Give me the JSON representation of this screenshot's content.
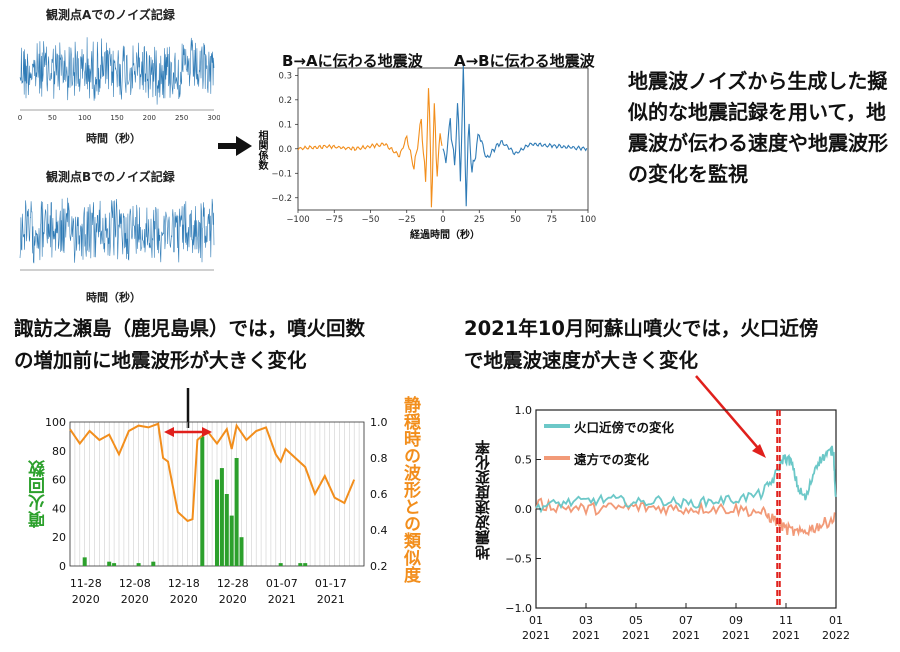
{
  "top_left": {
    "noise_a": {
      "title": "観測点Aでのノイズ記録",
      "xlabel": "時間（秒）",
      "xticks": [
        "0",
        "50",
        "100",
        "150",
        "200",
        "250",
        "300"
      ]
    },
    "noise_b": {
      "title": "観測点Bでのノイズ記録",
      "xlabel": "時間（秒）",
      "xticks": [
        "0",
        "50",
        "100",
        "150",
        "200",
        "250",
        "300"
      ]
    }
  },
  "arrow_icon": "right-arrow-icon",
  "corr": {
    "label_ba": "B→Aに伝わる地震波",
    "label_ab": "A→Bに伝わる地震波",
    "ylabel": "相関係数",
    "xlabel": "経過時間（秒）",
    "xticks": [
      "−100",
      "−75",
      "−50",
      "−25",
      "0",
      "25",
      "50",
      "75",
      "100"
    ],
    "yticks": [
      "0.3",
      "0.2",
      "0.1",
      "0.0",
      "−0.1",
      "−0.2"
    ],
    "color_ba": "#f28e1c",
    "color_ab": "#2f7bb6"
  },
  "description": "地震波ノイズから生成した擬似的な地震記録を用いて，地震波が伝わる速度や地震波形の変化を監視",
  "suwanose": {
    "heading_line1": "諏訪之瀬島（鹿児島県）では，噴火回数",
    "heading_line2": "の増加前に地震波形が大きく変化",
    "ylabel_left": "噴火回数",
    "ylabel_right": "静穏時の波形との類似度",
    "yticks_left": [
      "100",
      "80",
      "60",
      "40",
      "20",
      "0"
    ],
    "yticks_right": [
      "1.0",
      "0.8",
      "0.6",
      "0.4",
      "0.2"
    ],
    "xtick_dates": [
      "11-28",
      "12-08",
      "12-18",
      "12-28",
      "01-07",
      "01-17"
    ],
    "xtick_years": [
      "2020",
      "2020",
      "2020",
      "2020",
      "2021",
      "2021"
    ],
    "bar_color": "#2ca02c",
    "line_color": "#f28e1c"
  },
  "aso": {
    "heading_line1": "2021年10月阿蘇山噴火では，火口近傍",
    "heading_line2": "で地震波速度が大きく変化",
    "legend_near": "火口近傍での変化",
    "legend_far": "遠方での変化",
    "ylabel": "地震波速度変化率",
    "yticks": [
      "1.0",
      "0.5",
      "0.0",
      "−0.5",
      "−1.0"
    ],
    "xtick_months": [
      "01",
      "03",
      "05",
      "07",
      "09",
      "11",
      "01"
    ],
    "xtick_years": [
      "2021",
      "2021",
      "2021",
      "2021",
      "2021",
      "2021",
      "2022"
    ],
    "near_color": "#6cc8c8",
    "far_color": "#f29a78",
    "eruption_line_color": "#e0201c"
  },
  "chart_data": [
    {
      "type": "line",
      "title": "観測点Aでのノイズ記録",
      "xlabel": "時間（秒）",
      "xlim": [
        0,
        300
      ],
      "series": [
        {
          "values_description_free": true,
          "kind": "noise"
        }
      ]
    },
    {
      "type": "line",
      "title": "観測点Bでのノイズ記録",
      "xlabel": "時間（秒）",
      "xlim": [
        0,
        300
      ],
      "series": [
        {
          "kind": "noise"
        }
      ]
    },
    {
      "type": "line",
      "xlabel": "経過時間（秒）",
      "ylabel": "相関係数",
      "xlim": [
        -100,
        100
      ],
      "ylim": [
        -0.25,
        0.33
      ],
      "series": [
        {
          "name": "B→Aに伝わる地震波",
          "x": [
            -100,
            -80,
            -60,
            -40,
            -30,
            -25,
            -20,
            -15,
            -12,
            -10,
            -8,
            -6,
            -4,
            -2,
            0
          ],
          "y": [
            0.0,
            0.01,
            0.0,
            0.02,
            -0.03,
            0.05,
            -0.08,
            0.12,
            -0.15,
            0.27,
            -0.22,
            0.15,
            -0.1,
            0.06,
            0.0
          ]
        },
        {
          "name": "A→Bに伝わる地震波",
          "x": [
            0,
            2,
            5,
            8,
            10,
            12,
            14,
            16,
            18,
            20,
            25,
            30,
            40,
            50,
            60,
            80,
            100
          ],
          "y": [
            0.0,
            -0.05,
            0.12,
            -0.08,
            0.18,
            -0.12,
            0.3,
            -0.2,
            0.1,
            -0.1,
            0.06,
            -0.04,
            0.03,
            -0.02,
            0.02,
            0.01,
            0.0
          ]
        }
      ]
    },
    {
      "type": "bar",
      "ylabel": "噴火回数",
      "ylabel_right": "静穏時の波形との類似度",
      "ylim": [
        0,
        100
      ],
      "ylim_right": [
        0.2,
        1.0
      ],
      "bars": [
        {
          "day": 3,
          "value": 6
        },
        {
          "day": 8,
          "value": 3
        },
        {
          "day": 9,
          "value": 2
        },
        {
          "day": 14,
          "value": 2
        },
        {
          "day": 17,
          "value": 3
        },
        {
          "day": 27,
          "value": 90
        },
        {
          "day": 30,
          "value": 60
        },
        {
          "day": 31,
          "value": 68
        },
        {
          "day": 32,
          "value": 50
        },
        {
          "day": 33,
          "value": 35
        },
        {
          "day": 34,
          "value": 75
        },
        {
          "day": 35,
          "value": 20
        },
        {
          "day": 43,
          "value": 2
        },
        {
          "day": 47,
          "value": 2
        },
        {
          "day": 48,
          "value": 2
        }
      ],
      "similarity": {
        "day": [
          0,
          2,
          4,
          6,
          8,
          10,
          12,
          14,
          16,
          18,
          19,
          20,
          22,
          24,
          25,
          26,
          28,
          30,
          32,
          33,
          34,
          36,
          38,
          40,
          42,
          43,
          44,
          46,
          48,
          50,
          52,
          54,
          56,
          58
        ],
        "value": [
          0.96,
          0.88,
          0.95,
          0.9,
          0.93,
          0.82,
          0.95,
          0.98,
          0.97,
          0.99,
          0.8,
          0.78,
          0.5,
          0.45,
          0.46,
          0.9,
          0.95,
          0.88,
          0.96,
          0.85,
          0.98,
          0.9,
          0.95,
          0.97,
          0.82,
          0.78,
          0.85,
          0.8,
          0.75,
          0.6,
          0.7,
          0.58,
          0.55,
          0.68
        ]
      }
    },
    {
      "type": "line",
      "ylabel": "地震波速度変化率",
      "ylim": [
        -1.0,
        1.0
      ],
      "x_months": [
        0,
        12
      ],
      "series": [
        {
          "name": "火口近傍での変化",
          "month": [
            0,
            1,
            2,
            3,
            4,
            5,
            6,
            7,
            8,
            9,
            9.5,
            9.9,
            10.2,
            10.5,
            10.8,
            11.2,
            11.6,
            11.9,
            12
          ],
          "value": [
            0.02,
            0.06,
            0.08,
            0.1,
            0.06,
            0.09,
            0.05,
            0.08,
            0.1,
            0.15,
            0.3,
            0.52,
            0.48,
            0.2,
            0.1,
            0.45,
            0.55,
            0.6,
            0.05
          ]
        },
        {
          "name": "遠方での変化",
          "month": [
            0,
            1,
            2,
            3,
            4,
            5,
            6,
            7,
            8,
            9,
            9.5,
            10,
            10.5,
            11,
            11.5,
            12
          ],
          "value": [
            0.05,
            0.02,
            0.0,
            0.01,
            0.02,
            0.01,
            0.0,
            0.01,
            0.0,
            -0.03,
            -0.1,
            -0.2,
            -0.25,
            -0.2,
            -0.15,
            -0.08
          ]
        }
      ],
      "eruption_marker_months": [
        9.65,
        9.75
      ]
    }
  ]
}
